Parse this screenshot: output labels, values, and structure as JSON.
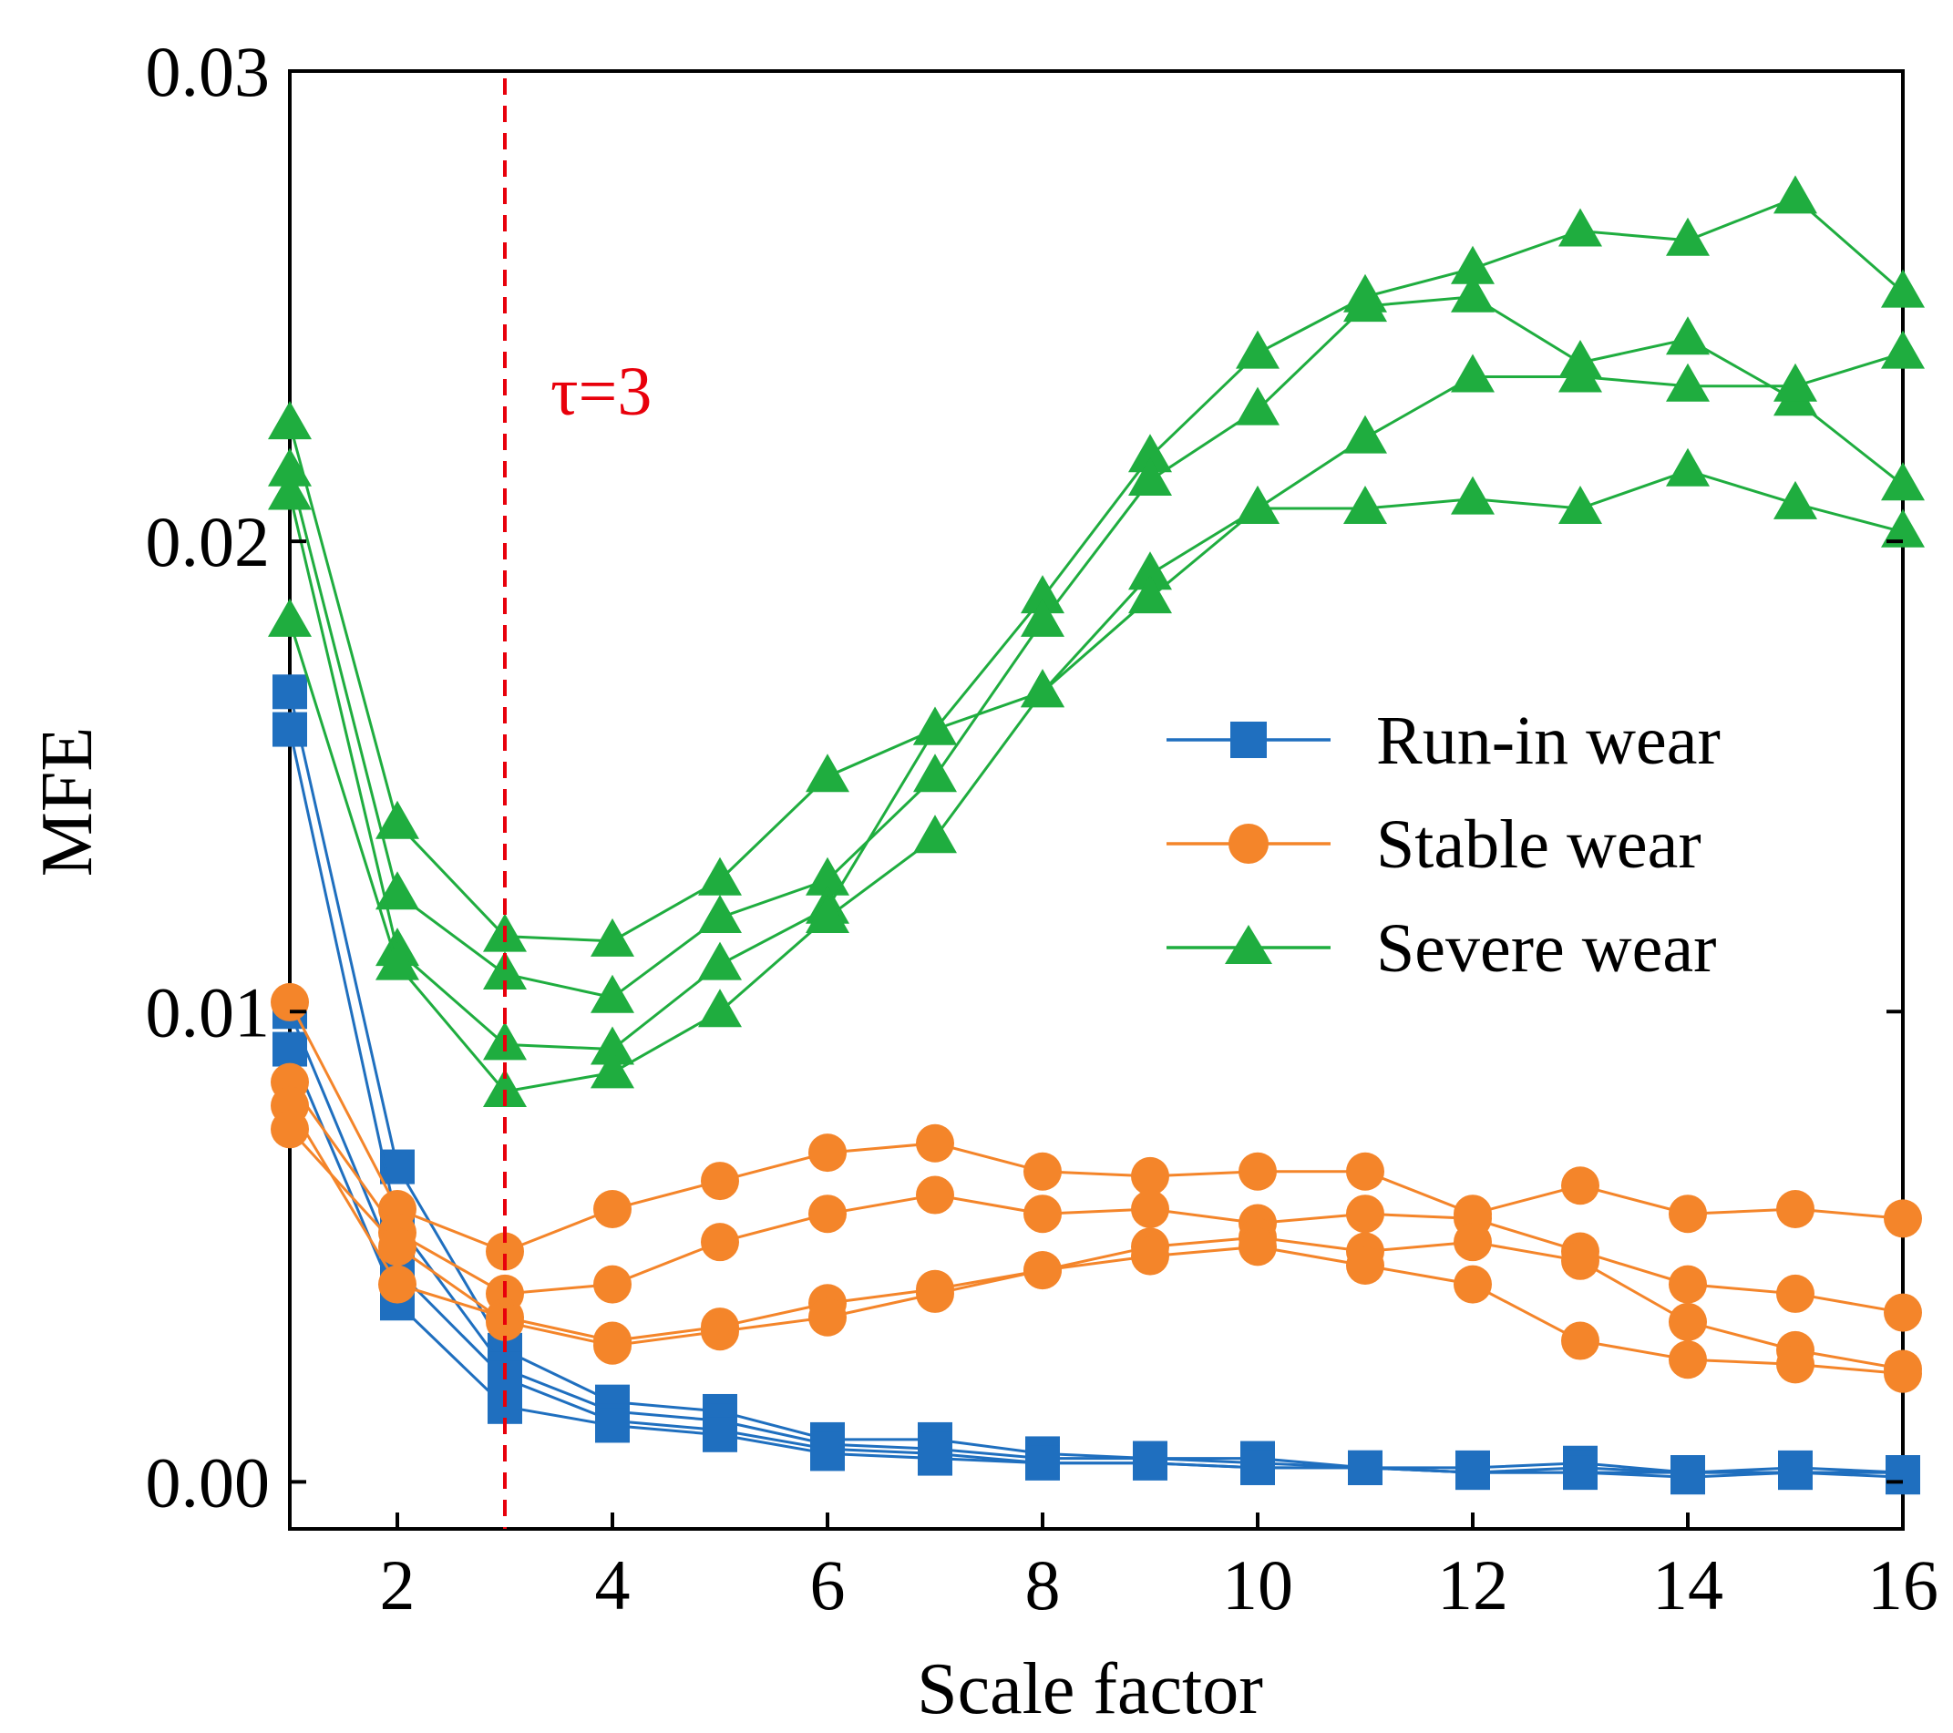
{
  "chart_data": {
    "type": "line",
    "title": "",
    "xlabel": "Scale factor",
    "ylabel": "MFE",
    "x": [
      1,
      2,
      3,
      4,
      5,
      6,
      7,
      8,
      9,
      10,
      11,
      12,
      13,
      14,
      15,
      16
    ],
    "xlim": [
      1,
      16
    ],
    "ylim": [
      -0.001,
      0.03
    ],
    "xticks": [
      "2",
      "4",
      "6",
      "8",
      "10",
      "12",
      "14",
      "16"
    ],
    "yticks": [
      "0.00",
      "0.01",
      "0.02",
      "0.03"
    ],
    "ytick_values": [
      0,
      0.01,
      0.02,
      0.03
    ],
    "xtick_values": [
      2,
      4,
      6,
      8,
      10,
      12,
      14,
      16
    ],
    "grid": false,
    "legend_position": "center-right",
    "colors": {
      "run_in": "#1f6fbf",
      "stable": "#f4852a",
      "severe": "#1fad3f",
      "annotation": "#e8000b"
    },
    "legend": [
      "Run-in wear",
      "Stable wear",
      "Severe wear"
    ],
    "annotation": {
      "text": "τ=3",
      "x": 3
    },
    "series": [
      {
        "name": "Run-in wear",
        "group": "run_in",
        "marker": "square",
        "values": [
          0.0168,
          0.0067,
          0.0028,
          0.0017,
          0.0015,
          0.0009,
          0.0009,
          0.0006,
          0.0005,
          0.0005,
          0.0003,
          0.0003,
          0.0004,
          0.0002,
          0.0003,
          0.0002
        ]
      },
      {
        "name": "Run-in wear",
        "group": "run_in",
        "marker": "square",
        "values": [
          0.016,
          0.0055,
          0.0024,
          0.0015,
          0.0013,
          0.0008,
          0.0007,
          0.0005,
          0.0005,
          0.0004,
          0.0003,
          0.0002,
          0.0003,
          0.0002,
          0.0002,
          0.0002
        ]
      },
      {
        "name": "Run-in wear",
        "group": "run_in",
        "marker": "square",
        "values": [
          0.01,
          0.0045,
          0.0022,
          0.0013,
          0.0011,
          0.0007,
          0.0006,
          0.0004,
          0.0004,
          0.0003,
          0.0003,
          0.0002,
          0.0002,
          0.0002,
          0.0002,
          0.0002
        ]
      },
      {
        "name": "Run-in wear",
        "group": "run_in",
        "marker": "square",
        "values": [
          0.0092,
          0.0038,
          0.0016,
          0.0012,
          0.001,
          0.0006,
          0.0005,
          0.0004,
          0.0004,
          0.0003,
          0.0003,
          0.0002,
          0.0002,
          0.0001,
          0.0002,
          0.0001
        ]
      },
      {
        "name": "Stable wear",
        "group": "stable",
        "marker": "circle",
        "values": [
          0.0102,
          0.0058,
          0.0049,
          0.0058,
          0.0064,
          0.007,
          0.0072,
          0.0066,
          0.0065,
          0.0066,
          0.0066,
          0.0057,
          0.0063,
          0.0057,
          0.0058,
          0.0056
        ]
      },
      {
        "name": "Stable wear",
        "group": "stable",
        "marker": "circle",
        "values": [
          0.0085,
          0.0053,
          0.004,
          0.0042,
          0.0051,
          0.0057,
          0.0061,
          0.0057,
          0.0058,
          0.0055,
          0.0057,
          0.0056,
          0.0049,
          0.0042,
          0.004,
          0.0036
        ]
      },
      {
        "name": "Stable wear",
        "group": "stable",
        "marker": "circle",
        "values": [
          0.008,
          0.0042,
          0.0035,
          0.003,
          0.0033,
          0.0038,
          0.0041,
          0.0045,
          0.005,
          0.0052,
          0.0049,
          0.0051,
          0.0047,
          0.0034,
          0.0028,
          0.0024
        ]
      },
      {
        "name": "Stable wear",
        "group": "stable",
        "marker": "circle",
        "values": [
          0.0075,
          0.005,
          0.0034,
          0.0029,
          0.0032,
          0.0035,
          0.004,
          0.0045,
          0.0048,
          0.005,
          0.0046,
          0.0042,
          0.003,
          0.0026,
          0.0025,
          0.0023
        ]
      },
      {
        "name": "Severe wear",
        "group": "severe",
        "marker": "triangle",
        "values": [
          0.0225,
          0.014,
          0.0116,
          0.0115,
          0.0128,
          0.015,
          0.016,
          0.0188,
          0.0218,
          0.024,
          0.0252,
          0.0258,
          0.0266,
          0.0264,
          0.0273,
          0.0253
        ]
      },
      {
        "name": "Severe wear",
        "group": "severe",
        "marker": "triangle",
        "values": [
          0.0215,
          0.0125,
          0.0108,
          0.0103,
          0.012,
          0.0128,
          0.015,
          0.0183,
          0.0213,
          0.0228,
          0.025,
          0.0252,
          0.0238,
          0.0243,
          0.023,
          0.0212
        ]
      },
      {
        "name": "Severe wear",
        "group": "severe",
        "marker": "triangle",
        "values": [
          0.021,
          0.0113,
          0.0093,
          0.0092,
          0.011,
          0.0122,
          0.016,
          0.0168,
          0.0193,
          0.0207,
          0.0222,
          0.0235,
          0.0235,
          0.0233,
          0.0233,
          0.024
        ]
      },
      {
        "name": "Severe wear",
        "group": "severe",
        "marker": "triangle",
        "values": [
          0.0183,
          0.011,
          0.0083,
          0.0087,
          0.01,
          0.012,
          0.0137,
          0.0168,
          0.0188,
          0.0207,
          0.0207,
          0.0209,
          0.0207,
          0.0215,
          0.0208,
          0.0202
        ]
      }
    ]
  }
}
